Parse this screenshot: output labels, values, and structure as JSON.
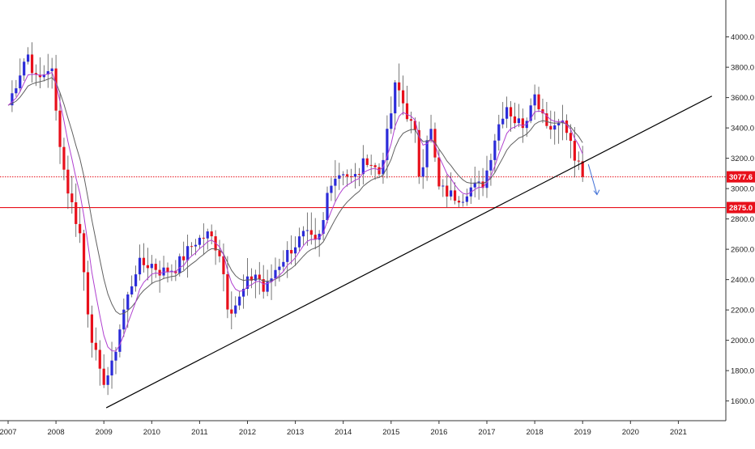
{
  "chart_data": {
    "type": "candlestick",
    "title": "",
    "x_ticks": [
      "2007",
      "2008",
      "2009",
      "2010",
      "2011",
      "2012",
      "2013",
      "2014",
      "2015",
      "2016",
      "2017",
      "2018",
      "2019",
      "2020",
      "2021"
    ],
    "y_ticks": [
      "1600.0",
      "1800.0",
      "2000.0",
      "2200.0",
      "2400.0",
      "2600.0",
      "2800.0",
      "3000.0",
      "3200.0",
      "3400.0",
      "3600.0",
      "3800.0",
      "4000.0"
    ],
    "ylim": [
      1450,
      4100
    ],
    "xlim": [
      2007.0,
      2021.85
    ],
    "grid": false,
    "colors": {
      "up": "#2b2bd9",
      "down": "#e8101b",
      "ema_fast": "#b040d0",
      "ema_slow": "#606060",
      "trendline": "#000000",
      "arrow": "#3f6fd6",
      "level": "#e8101b"
    },
    "horizontal_levels": [
      {
        "value": 3077.6,
        "label": "3077.6",
        "style": "dotted"
      },
      {
        "value": 2875.0,
        "label": "2875.0",
        "style": "solid"
      }
    ],
    "trendline": {
      "x": [
        2009.05,
        2021.7
      ],
      "y": [
        1555,
        3610
      ]
    },
    "arrow": {
      "x": [
        2019.12,
        2019.3
      ],
      "y": [
        3160,
        2960
      ]
    },
    "anchors": [
      [
        2007.0,
        3550
      ],
      [
        2007.4,
        3900
      ],
      [
        2007.6,
        3700
      ],
      [
        2007.9,
        3820
      ],
      [
        2008.0,
        3500
      ],
      [
        2008.2,
        3050
      ],
      [
        2008.5,
        2700
      ],
      [
        2008.7,
        2100
      ],
      [
        2008.95,
        1720
      ],
      [
        2009.15,
        1800
      ],
      [
        2009.4,
        2180
      ],
      [
        2009.7,
        2500
      ],
      [
        2010.0,
        2500
      ],
      [
        2010.2,
        2450
      ],
      [
        2010.5,
        2480
      ],
      [
        2010.9,
        2650
      ],
      [
        2011.2,
        2700
      ],
      [
        2011.45,
        2560
      ],
      [
        2011.6,
        2200
      ],
      [
        2011.8,
        2250
      ],
      [
        2012.0,
        2380
      ],
      [
        2012.2,
        2450
      ],
      [
        2012.35,
        2310
      ],
      [
        2012.6,
        2480
      ],
      [
        2012.9,
        2600
      ],
      [
        2013.2,
        2700
      ],
      [
        2013.45,
        2620
      ],
      [
        2013.6,
        2800
      ],
      [
        2013.7,
        3050
      ],
      [
        2014.0,
        3120
      ],
      [
        2014.2,
        3050
      ],
      [
        2014.5,
        3200
      ],
      [
        2014.75,
        3100
      ],
      [
        2014.95,
        3400
      ],
      [
        2015.1,
        3700
      ],
      [
        2015.3,
        3520
      ],
      [
        2015.5,
        3350
      ],
      [
        2015.6,
        3050
      ],
      [
        2015.8,
        3450
      ],
      [
        2016.0,
        3000
      ],
      [
        2016.3,
        2950
      ],
      [
        2016.5,
        2950
      ],
      [
        2016.6,
        3000
      ],
      [
        2016.9,
        3020
      ],
      [
        2017.0,
        3120
      ],
      [
        2017.2,
        3380
      ],
      [
        2017.4,
        3560
      ],
      [
        2017.6,
        3440
      ],
      [
        2017.8,
        3430
      ],
      [
        2017.95,
        3640
      ],
      [
        2018.1,
        3550
      ],
      [
        2018.35,
        3380
      ],
      [
        2018.5,
        3480
      ],
      [
        2018.7,
        3350
      ],
      [
        2018.85,
        3180
      ],
      [
        2018.97,
        3110
      ],
      [
        2019.0,
        3080
      ]
    ]
  }
}
